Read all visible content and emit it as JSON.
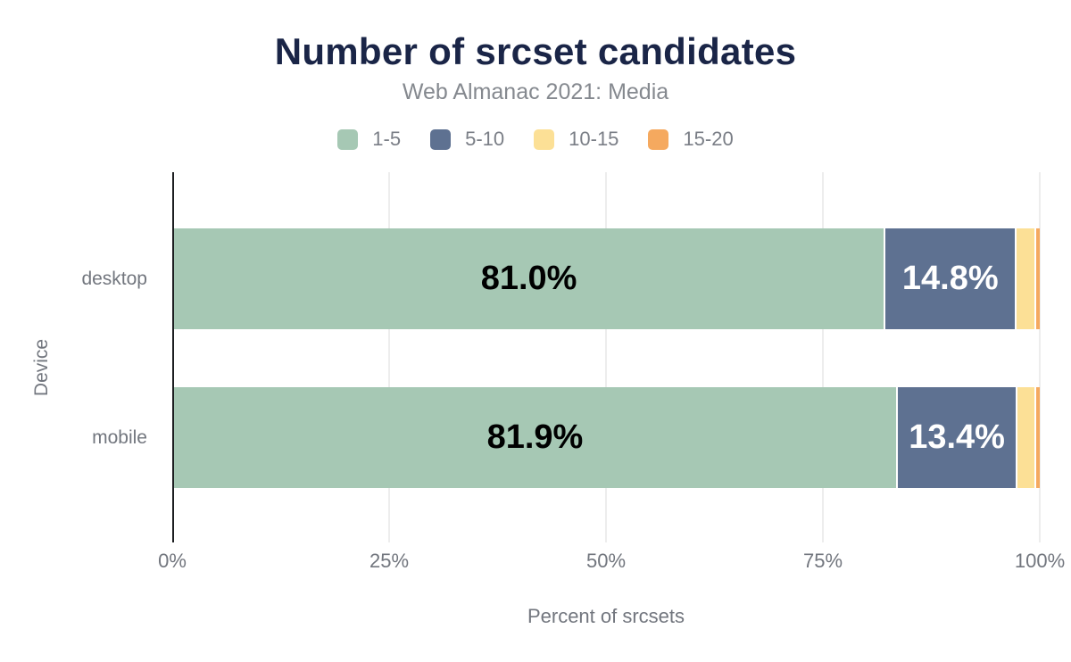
{
  "header": {
    "title": "Number of srcset candidates",
    "subtitle": "Web Almanac 2021: Media"
  },
  "axes": {
    "x_title": "Percent of srcsets",
    "y_title": "Device",
    "x_ticks": [
      "0%",
      "25%",
      "50%",
      "75%",
      "100%"
    ]
  },
  "colors": {
    "title_navy": "#1a2547",
    "axis_line": "#1c1e21",
    "gridline": "#ededed",
    "muted_text": "#72767e"
  },
  "chart_data": {
    "type": "bar",
    "orientation": "horizontal",
    "stacked": true,
    "title": "Number of srcset candidates",
    "subtitle": "Web Almanac 2021: Media",
    "xlabel": "Percent of srcsets",
    "ylabel": "Device",
    "xlim": [
      0,
      100
    ],
    "x_tick_labels": [
      "0%",
      "25%",
      "50%",
      "75%",
      "100%"
    ],
    "grid": true,
    "legend_position": "top",
    "categories": [
      "desktop",
      "mobile"
    ],
    "series": [
      {
        "name": "1-5",
        "color": "#a6c8b4",
        "label_color": "#000000",
        "values": [
          81.0,
          81.9
        ]
      },
      {
        "name": "5-10",
        "color": "#5e7191",
        "label_color": "#ffffff",
        "values": [
          14.8,
          13.4
        ]
      },
      {
        "name": "10-15",
        "color": "#fce096",
        "label_color": "#000000",
        "values": [
          2.0,
          1.9
        ]
      },
      {
        "name": "15-20",
        "color": "#f5a95f",
        "label_color": "#000000",
        "values": [
          0.4,
          0.4
        ]
      }
    ],
    "data_label_format": "0.0%",
    "data_label_min_value": 5
  }
}
